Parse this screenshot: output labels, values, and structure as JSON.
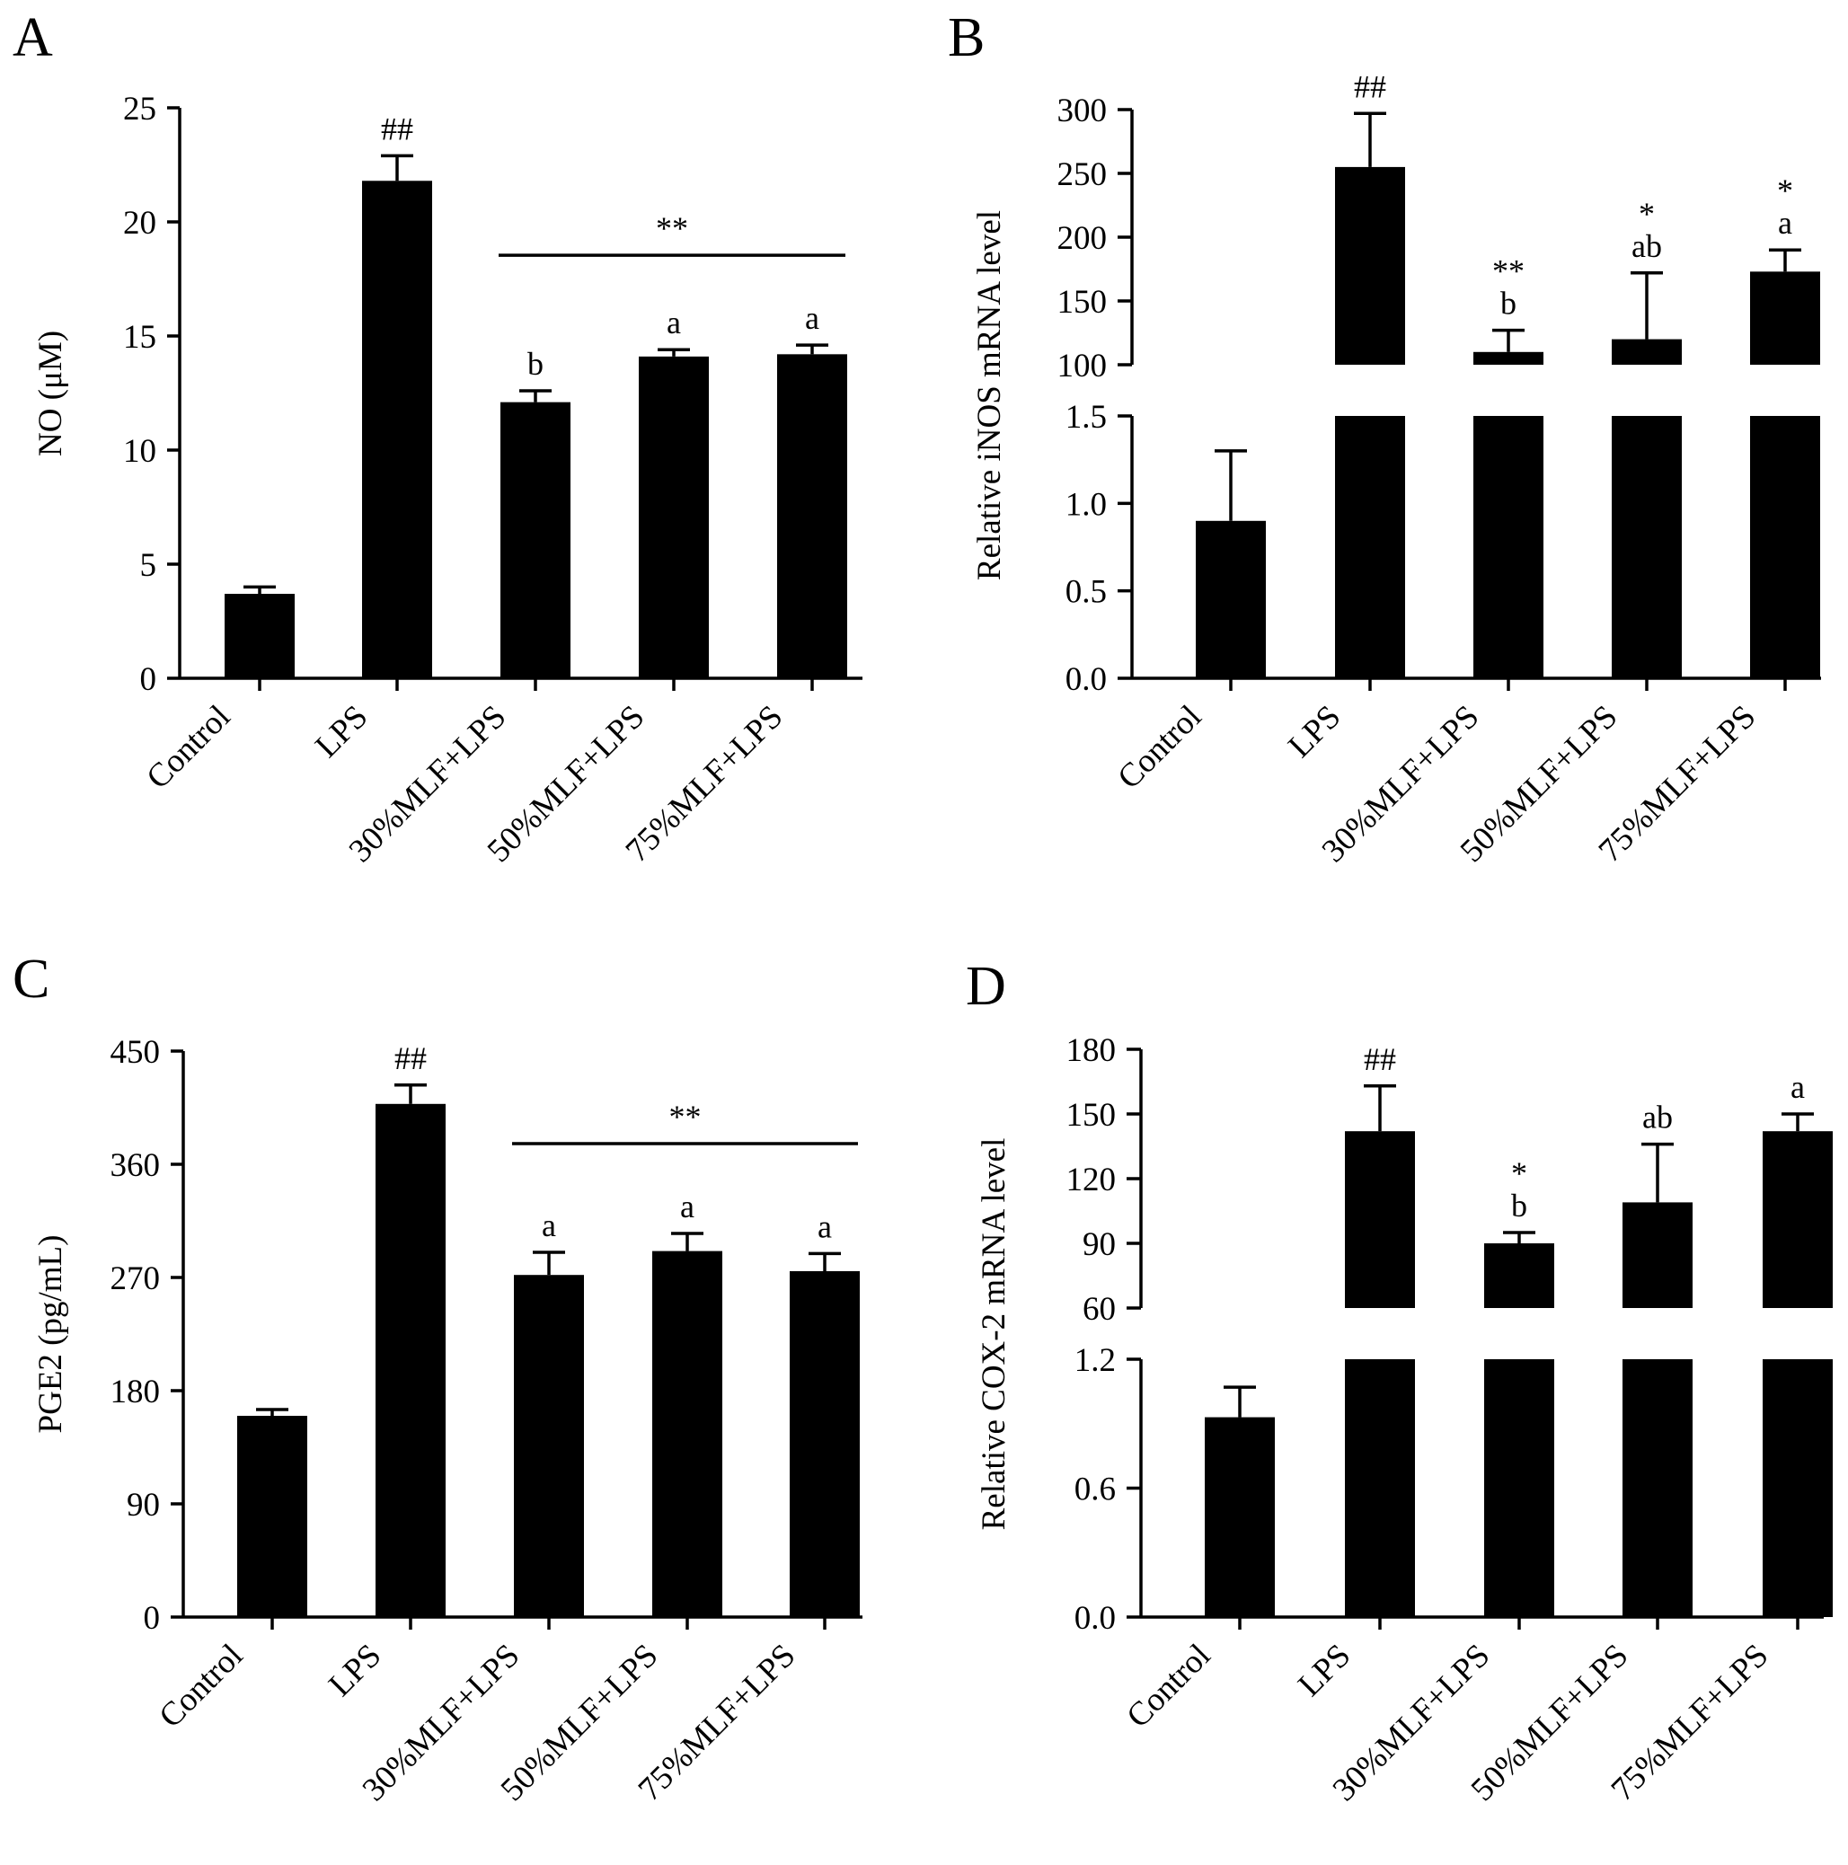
{
  "chart_data": [
    {
      "type": "bar",
      "panel": "A",
      "title": "",
      "xlabel": "",
      "ylabel": "NO (μM)",
      "categories": [
        "Control",
        "LPS",
        "30%MLF+LPS",
        "50%MLF+LPS",
        "75%MLF+LPS"
      ],
      "values": [
        3.7,
        21.8,
        12.1,
        14.1,
        14.2
      ],
      "errors": [
        0.3,
        1.1,
        0.5,
        0.3,
        0.4
      ],
      "ylim": [
        0,
        25
      ],
      "yticks": [
        "0",
        "5",
        "10",
        "15",
        "20",
        "25"
      ],
      "ytick_values": [
        0,
        5,
        10,
        15,
        20,
        25
      ],
      "annotations": [
        "",
        "##",
        "b",
        "a",
        "a"
      ],
      "significance_bracket": {
        "label": "**",
        "from_index": 2,
        "to_index": 4
      }
    },
    {
      "type": "bar",
      "panel": "B",
      "title": "",
      "xlabel": "",
      "ylabel": "Relative iNOS mRNA level",
      "categories": [
        "Control",
        "LPS",
        "30%MLF+LPS",
        "50%MLF+LPS",
        "75%MLF+LPS"
      ],
      "values": [
        0.9,
        255,
        110,
        120,
        173
      ],
      "errors": [
        0.4,
        42,
        17,
        52,
        17
      ],
      "broken_axis": {
        "lower_range": [
          0,
          1.5
        ],
        "lower_ticks": [
          "0.0",
          "0.5",
          "1.0",
          "1.5"
        ],
        "lower_tick_values": [
          0,
          0.5,
          1.0,
          1.5
        ],
        "upper_range": [
          100,
          300
        ],
        "upper_ticks": [
          "100",
          "150",
          "200",
          "250",
          "300"
        ],
        "upper_tick_values": [
          100,
          150,
          200,
          250,
          300
        ]
      },
      "annotations": [
        [],
        [
          "##"
        ],
        [
          "**",
          "b"
        ],
        [
          "*",
          "ab"
        ],
        [
          "*",
          "a"
        ]
      ]
    },
    {
      "type": "bar",
      "panel": "C",
      "title": "",
      "xlabel": "",
      "ylabel": "PGE2 (pg/mL)",
      "categories": [
        "Control",
        "LPS",
        "30%MLF+LPS",
        "50%MLF+LPS",
        "75%MLF+LPS"
      ],
      "values": [
        160,
        408,
        272,
        291,
        275
      ],
      "errors": [
        5,
        15,
        18,
        14,
        14
      ],
      "ylim": [
        0,
        450
      ],
      "yticks": [
        "0",
        "90",
        "180",
        "270",
        "360",
        "450"
      ],
      "ytick_values": [
        0,
        90,
        180,
        270,
        360,
        450
      ],
      "annotations": [
        "",
        "##",
        "a",
        "a",
        "a"
      ],
      "significance_bracket": {
        "label": "**",
        "from_index": 2,
        "to_index": 4
      }
    },
    {
      "type": "bar",
      "panel": "D",
      "title": "",
      "xlabel": "",
      "ylabel": "Relative COX-2 mRNA level",
      "categories": [
        "Control",
        "LPS",
        "30%MLF+LPS",
        "50%MLF+LPS",
        "75%MLF+LPS"
      ],
      "values": [
        0.93,
        142,
        90,
        109,
        142
      ],
      "errors": [
        0.14,
        21,
        5,
        27,
        8
      ],
      "broken_axis": {
        "lower_range": [
          0,
          1.2
        ],
        "lower_ticks": [
          "0.0",
          "0.6",
          "1.2"
        ],
        "lower_tick_values": [
          0,
          0.6,
          1.2
        ],
        "upper_range": [
          60,
          180
        ],
        "upper_ticks": [
          "60",
          "90",
          "120",
          "150",
          "180"
        ],
        "upper_tick_values": [
          60,
          90,
          120,
          150,
          180
        ]
      },
      "annotations": [
        [],
        [
          "##"
        ],
        [
          "*",
          "b"
        ],
        [
          "ab"
        ],
        [
          "a"
        ]
      ]
    }
  ]
}
